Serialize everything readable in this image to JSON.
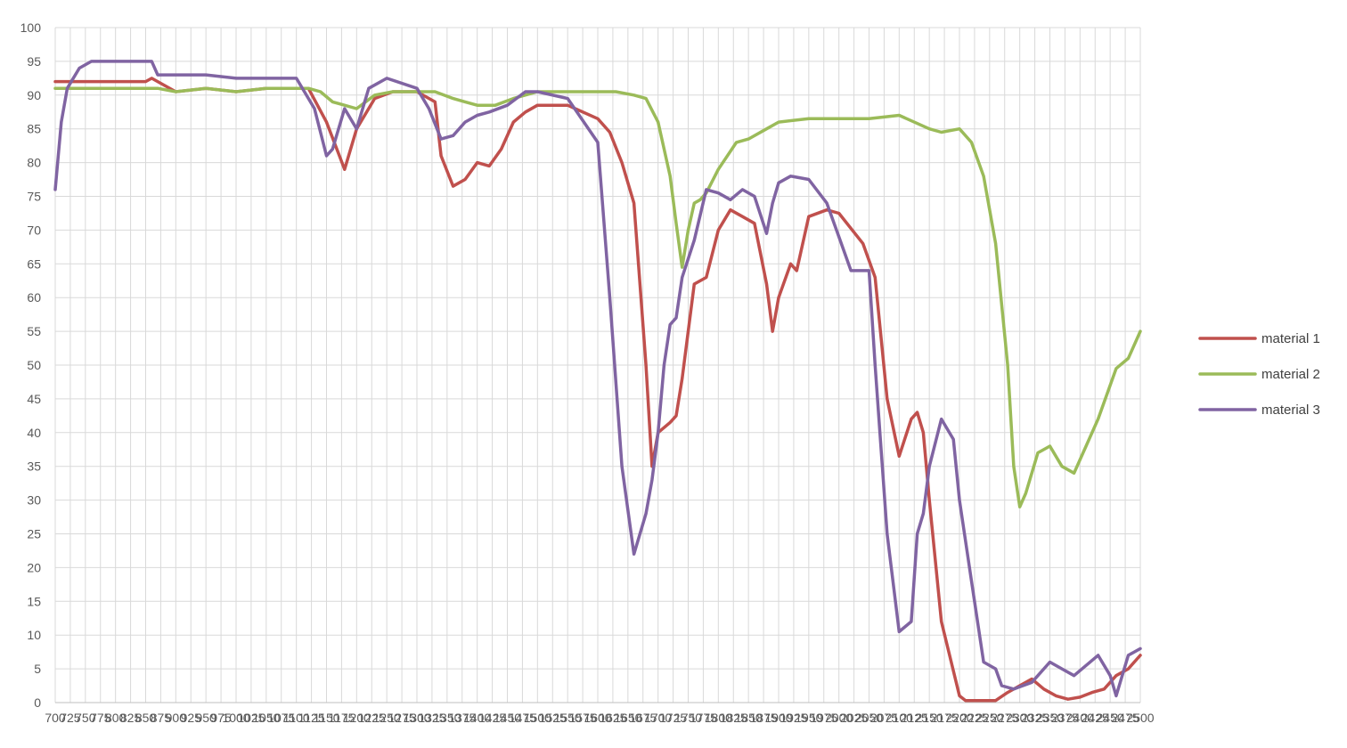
{
  "chart_data": {
    "type": "line",
    "title": "",
    "xlabel": "",
    "ylabel": "",
    "xlim": [
      700,
      2500
    ],
    "ylim": [
      0,
      100
    ],
    "y_ticks": [
      0,
      5,
      10,
      15,
      20,
      25,
      30,
      35,
      40,
      45,
      50,
      55,
      60,
      65,
      70,
      75,
      80,
      85,
      90,
      95,
      100
    ],
    "x_tick_labels": [
      "700",
      "725",
      "750",
      "775",
      "800",
      "825",
      "850",
      "875",
      "900",
      "925",
      "950",
      "975",
      "1000",
      "1025",
      "1050",
      "1075",
      "1100",
      "1125",
      "1150",
      "1175",
      "1200",
      "1225",
      "1250",
      "1275",
      "1300",
      "1325",
      "1350",
      "1375",
      "1400",
      "1425",
      "1450",
      "1475",
      "1500",
      "1525",
      "1550",
      "1575",
      "1600",
      "1625",
      "1650",
      "1675",
      "1700",
      "1725",
      "1750",
      "1775",
      "1800",
      "1825",
      "1850",
      "1875",
      "1900",
      "1925",
      "1950",
      "1975",
      "2000",
      "2025",
      "2050",
      "2075",
      "2100",
      "2125",
      "2150",
      "2175",
      "2200",
      "2225",
      "2250",
      "2275",
      "2300",
      "2325",
      "2350",
      "2375",
      "2400",
      "2425",
      "2450",
      "2475",
      "2500"
    ],
    "grid": true,
    "legend_position": "right",
    "series": [
      {
        "name": "material 1",
        "color": "#c0504d",
        "x": [
          700,
          750,
          800,
          850,
          860,
          900,
          950,
          1000,
          1050,
          1100,
          1120,
          1150,
          1180,
          1200,
          1230,
          1260,
          1300,
          1330,
          1340,
          1360,
          1380,
          1400,
          1420,
          1440,
          1460,
          1480,
          1500,
          1550,
          1600,
          1620,
          1640,
          1660,
          1680,
          1690,
          1700,
          1720,
          1730,
          1740,
          1760,
          1780,
          1800,
          1820,
          1840,
          1860,
          1880,
          1890,
          1900,
          1920,
          1930,
          1950,
          1980,
          2000,
          2040,
          2060,
          2080,
          2100,
          2120,
          2130,
          2140,
          2150,
          2170,
          2200,
          2210,
          2220,
          2230,
          2240,
          2260,
          2280,
          2300,
          2320,
          2340,
          2360,
          2380,
          2400,
          2420,
          2440,
          2460,
          2480,
          2500
        ],
        "values": [
          92,
          92,
          92,
          92,
          92.5,
          90.5,
          91,
          90.5,
          91,
          91,
          91,
          86,
          79,
          85,
          89.5,
          90.5,
          90.5,
          89,
          81,
          76.5,
          77.5,
          80,
          79.5,
          82,
          86,
          87.5,
          88.5,
          88.5,
          86.5,
          84.5,
          80,
          74,
          50,
          35,
          40,
          41.5,
          42.5,
          48,
          62,
          63,
          70,
          73,
          72,
          71,
          62,
          55,
          60,
          65,
          64,
          72,
          73,
          72.5,
          68,
          63,
          45,
          36.5,
          42,
          43,
          40,
          30,
          12,
          1,
          0.3,
          0.3,
          0.3,
          0.3,
          0.3,
          1.5,
          2.5,
          3.5,
          2,
          1,
          0.5,
          0.8,
          1.5,
          2,
          4,
          5,
          7
        ]
      },
      {
        "name": "material 2",
        "color": "#9bbb59",
        "x": [
          700,
          750,
          800,
          850,
          860,
          870,
          900,
          950,
          1000,
          1050,
          1100,
          1120,
          1140,
          1160,
          1180,
          1200,
          1230,
          1260,
          1300,
          1330,
          1360,
          1380,
          1400,
          1430,
          1460,
          1500,
          1550,
          1600,
          1630,
          1660,
          1680,
          1700,
          1720,
          1730,
          1740,
          1750,
          1760,
          1770,
          1780,
          1800,
          1830,
          1850,
          1880,
          1900,
          1950,
          2000,
          2050,
          2100,
          2150,
          2170,
          2200,
          2220,
          2240,
          2260,
          2280,
          2290,
          2300,
          2310,
          2330,
          2350,
          2370,
          2390,
          2410,
          2430,
          2460,
          2480,
          2500
        ],
        "values": [
          91,
          91,
          91,
          91,
          91,
          91,
          90.5,
          91,
          90.5,
          91,
          91,
          91,
          90.5,
          89,
          88.5,
          88,
          90,
          90.5,
          90.5,
          90.5,
          89.5,
          89,
          88.5,
          88.5,
          89.5,
          90.5,
          90.5,
          90.5,
          90.5,
          90,
          89.5,
          86,
          78,
          71,
          64.5,
          70,
          74,
          74.5,
          75.5,
          79,
          83,
          83.5,
          85,
          86,
          86.5,
          86.5,
          86.5,
          87,
          85,
          84.5,
          85,
          83,
          78,
          68,
          50,
          35,
          29,
          31,
          37,
          38,
          35,
          34,
          38,
          42,
          49.5,
          51,
          55
        ]
      },
      {
        "name": "material 3",
        "color": "#8064a2",
        "x": [
          700,
          710,
          720,
          740,
          760,
          780,
          800,
          820,
          850,
          860,
          870,
          900,
          950,
          1000,
          1050,
          1100,
          1130,
          1150,
          1160,
          1180,
          1200,
          1220,
          1250,
          1300,
          1320,
          1340,
          1360,
          1380,
          1400,
          1420,
          1450,
          1480,
          1500,
          1550,
          1600,
          1620,
          1640,
          1660,
          1680,
          1690,
          1700,
          1710,
          1720,
          1730,
          1740,
          1760,
          1780,
          1800,
          1820,
          1840,
          1860,
          1880,
          1890,
          1900,
          1920,
          1950,
          1980,
          2000,
          2020,
          2050,
          2060,
          2080,
          2100,
          2120,
          2130,
          2140,
          2150,
          2170,
          2190,
          2200,
          2220,
          2240,
          2260,
          2270,
          2290,
          2320,
          2330,
          2350,
          2370,
          2390,
          2410,
          2430,
          2450,
          2460,
          2480,
          2500
        ],
        "values": [
          76,
          86,
          91,
          94,
          95,
          95,
          95,
          95,
          95,
          95,
          93,
          93,
          93,
          92.5,
          92.5,
          92.5,
          88,
          81,
          82,
          88,
          85,
          91,
          92.5,
          91,
          88,
          83.5,
          84,
          86,
          87,
          87.5,
          88.5,
          90.5,
          90.5,
          89.5,
          83,
          60,
          35,
          22,
          28,
          33,
          40,
          50,
          56,
          57,
          63,
          68.5,
          76,
          75.5,
          74.5,
          76,
          75,
          69.5,
          74,
          77,
          78,
          77.5,
          74,
          69,
          64,
          64,
          50,
          25,
          10.5,
          12,
          25,
          28,
          35,
          42,
          39,
          30,
          18,
          6,
          5,
          2.5,
          2,
          3,
          4,
          6,
          5,
          4,
          5.5,
          7,
          4,
          1,
          7,
          8
        ]
      }
    ]
  }
}
